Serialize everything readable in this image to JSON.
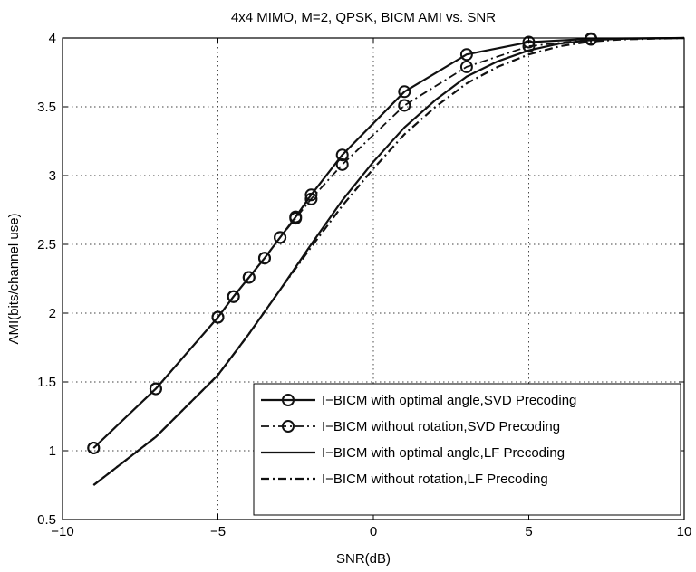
{
  "chart_data": {
    "type": "line",
    "title": "4x4 MIMO, M=2, QPSK, BICM AMI vs. SNR",
    "xlabel": "SNR(dB)",
    "ylabel": "AMI(bits/channel use)",
    "xlim": [
      -10,
      10
    ],
    "ylim": [
      0.5,
      4
    ],
    "xticks": [
      -10,
      -5,
      0,
      5,
      10
    ],
    "xtick_labels": [
      "−10",
      "−5",
      "0",
      "5",
      "10"
    ],
    "yticks": [
      0.5,
      1,
      1.5,
      2,
      2.5,
      3,
      3.5,
      4
    ],
    "ytick_labels": [
      "0.5",
      "1",
      "1.5",
      "2",
      "2.5",
      "3",
      "3.5",
      "4"
    ],
    "grid": true,
    "legend_position": "bottom-right",
    "series": [
      {
        "name": "I−BICM with optimal angle,SVD Precoding",
        "style": "solid-marker",
        "x": [
          -9,
          -7,
          -5,
          -4.5,
          -4,
          -3.5,
          -3,
          -2.5,
          -2,
          -1,
          1,
          3,
          5,
          7,
          10
        ],
        "y": [
          1.02,
          1.45,
          1.97,
          2.12,
          2.26,
          2.4,
          2.55,
          2.7,
          2.86,
          3.15,
          3.61,
          3.88,
          3.97,
          3.995,
          4.0
        ],
        "markers": [
          true,
          true,
          true,
          true,
          true,
          true,
          true,
          true,
          true,
          true,
          true,
          true,
          true,
          true,
          false
        ]
      },
      {
        "name": "I−BICM without rotation,SVD Precoding",
        "style": "dashdot-marker",
        "x": [
          -9,
          -7,
          -5,
          -4.5,
          -4,
          -3.5,
          -3,
          -2.5,
          -2,
          -1,
          1,
          3,
          5,
          7,
          10
        ],
        "y": [
          1.02,
          1.45,
          1.97,
          2.12,
          2.26,
          2.4,
          2.55,
          2.69,
          2.83,
          3.08,
          3.51,
          3.79,
          3.94,
          3.99,
          4.0
        ],
        "markers": [
          true,
          true,
          true,
          true,
          true,
          true,
          true,
          true,
          true,
          true,
          true,
          true,
          true,
          true,
          false
        ]
      },
      {
        "name": "I−BICM with optimal angle,LF Precoding",
        "style": "solid",
        "x": [
          -9,
          -7,
          -5,
          -4,
          -3,
          -2,
          -1,
          0,
          1,
          2,
          3,
          4,
          5,
          6,
          7,
          8,
          10
        ],
        "y": [
          0.75,
          1.1,
          1.55,
          1.85,
          2.17,
          2.5,
          2.82,
          3.1,
          3.35,
          3.55,
          3.72,
          3.83,
          3.91,
          3.96,
          3.985,
          3.995,
          4.0
        ]
      },
      {
        "name": "I−BICM without rotation,LF Precoding",
        "style": "dashdot",
        "x": [
          -9,
          -7,
          -5,
          -4,
          -3,
          -2,
          -1,
          0,
          1,
          2,
          3,
          4,
          5,
          6,
          7,
          8,
          10
        ],
        "y": [
          0.75,
          1.1,
          1.55,
          1.85,
          2.17,
          2.48,
          2.78,
          3.05,
          3.3,
          3.5,
          3.67,
          3.79,
          3.88,
          3.94,
          3.975,
          3.99,
          4.0
        ]
      }
    ]
  }
}
